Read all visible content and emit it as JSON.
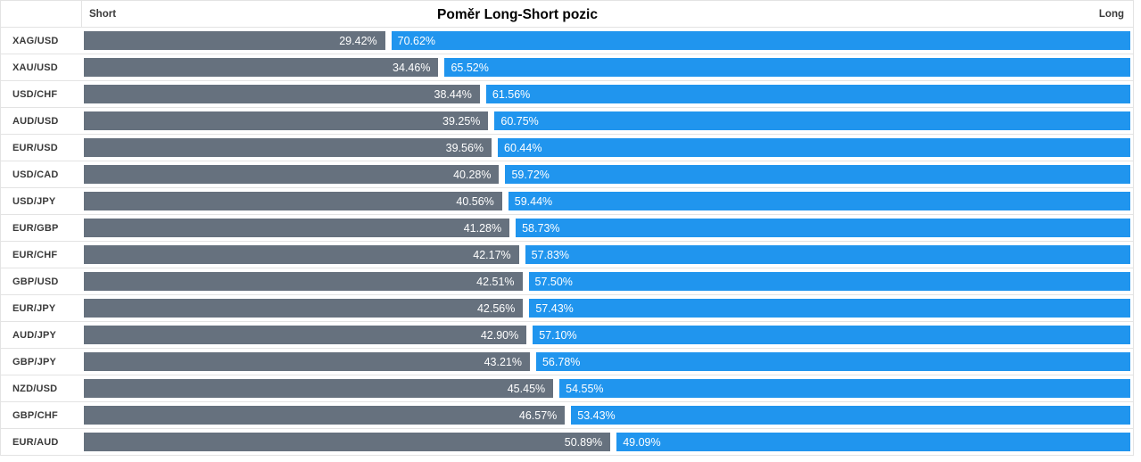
{
  "header": {
    "short_label": "Short",
    "title": "Poměr Long-Short pozic",
    "long_label": "Long"
  },
  "colors": {
    "short_bar": "#66717e",
    "long_bar": "#2095ee",
    "border": "#e3e3e3",
    "label_text": "#3a3a3a",
    "bar_text": "#ffffff"
  },
  "chart_data": {
    "type": "bar",
    "orientation": "horizontal",
    "stacked": true,
    "title": "Poměr Long-Short pozic",
    "legend": [
      "Short",
      "Long"
    ],
    "legend_position": "top-corners",
    "grid": false,
    "xlim": [
      0,
      100
    ],
    "value_suffix": "%",
    "categories": [
      "XAG/USD",
      "XAU/USD",
      "USD/CHF",
      "AUD/USD",
      "EUR/USD",
      "USD/CAD",
      "USD/JPY",
      "EUR/GBP",
      "EUR/CHF",
      "GBP/USD",
      "EUR/JPY",
      "AUD/JPY",
      "GBP/JPY",
      "NZD/USD",
      "GBP/CHF",
      "EUR/AUD"
    ],
    "series": [
      {
        "name": "Short",
        "color": "#66717e",
        "values": [
          29.42,
          34.46,
          38.44,
          39.25,
          39.56,
          40.28,
          40.56,
          41.28,
          42.17,
          42.51,
          42.56,
          42.9,
          43.21,
          45.45,
          46.57,
          50.89
        ]
      },
      {
        "name": "Long",
        "color": "#2095ee",
        "values": [
          70.62,
          65.52,
          61.56,
          60.75,
          60.44,
          59.72,
          59.44,
          58.73,
          57.83,
          57.5,
          57.43,
          57.1,
          56.78,
          54.55,
          53.43,
          49.09
        ]
      }
    ]
  },
  "rows": [
    {
      "pair": "XAG/USD",
      "short": "29.42%",
      "long": "70.62%",
      "short_value": 29.42,
      "long_value": 70.62
    },
    {
      "pair": "XAU/USD",
      "short": "34.46%",
      "long": "65.52%",
      "short_value": 34.46,
      "long_value": 65.52
    },
    {
      "pair": "USD/CHF",
      "short": "38.44%",
      "long": "61.56%",
      "short_value": 38.44,
      "long_value": 61.56
    },
    {
      "pair": "AUD/USD",
      "short": "39.25%",
      "long": "60.75%",
      "short_value": 39.25,
      "long_value": 60.75
    },
    {
      "pair": "EUR/USD",
      "short": "39.56%",
      "long": "60.44%",
      "short_value": 39.56,
      "long_value": 60.44
    },
    {
      "pair": "USD/CAD",
      "short": "40.28%",
      "long": "59.72%",
      "short_value": 40.28,
      "long_value": 59.72
    },
    {
      "pair": "USD/JPY",
      "short": "40.56%",
      "long": "59.44%",
      "short_value": 40.56,
      "long_value": 59.44
    },
    {
      "pair": "EUR/GBP",
      "short": "41.28%",
      "long": "58.73%",
      "short_value": 41.28,
      "long_value": 58.73
    },
    {
      "pair": "EUR/CHF",
      "short": "42.17%",
      "long": "57.83%",
      "short_value": 42.17,
      "long_value": 57.83
    },
    {
      "pair": "GBP/USD",
      "short": "42.51%",
      "long": "57.50%",
      "short_value": 42.51,
      "long_value": 57.5
    },
    {
      "pair": "EUR/JPY",
      "short": "42.56%",
      "long": "57.43%",
      "short_value": 42.56,
      "long_value": 57.43
    },
    {
      "pair": "AUD/JPY",
      "short": "42.90%",
      "long": "57.10%",
      "short_value": 42.9,
      "long_value": 57.1
    },
    {
      "pair": "GBP/JPY",
      "short": "43.21%",
      "long": "56.78%",
      "short_value": 43.21,
      "long_value": 56.78
    },
    {
      "pair": "NZD/USD",
      "short": "45.45%",
      "long": "54.55%",
      "short_value": 45.45,
      "long_value": 54.55
    },
    {
      "pair": "GBP/CHF",
      "short": "46.57%",
      "long": "53.43%",
      "short_value": 46.57,
      "long_value": 53.43
    },
    {
      "pair": "EUR/AUD",
      "short": "50.89%",
      "long": "49.09%",
      "short_value": 50.89,
      "long_value": 49.09
    }
  ]
}
